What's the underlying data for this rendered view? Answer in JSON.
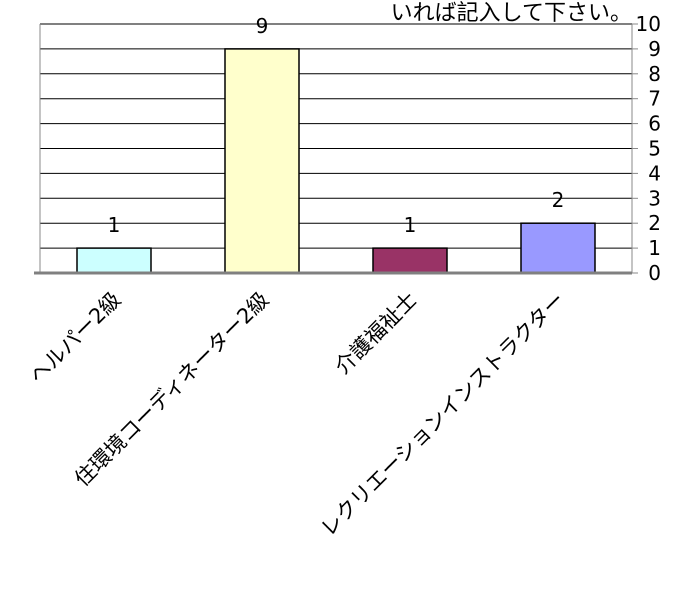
{
  "chart_data": {
    "type": "bar",
    "title": "いれば記入して下さい。",
    "categories": [
      "ヘルパー2級",
      "住環境コーディネーター2級",
      "介護福祉士",
      "レクリエーションインストラクター"
    ],
    "values": [
      1,
      9,
      1,
      2
    ],
    "data_labels": [
      "1",
      "9",
      "1",
      "2"
    ],
    "bar_colors": [
      "#ccffff",
      "#ffffcc",
      "#993366",
      "#9999ff"
    ],
    "ylim": [
      0,
      10
    ],
    "y_ticks": [
      0,
      1,
      2,
      3,
      4,
      5,
      6,
      7,
      8,
      9,
      10
    ],
    "y_axis_side": "right",
    "grid": true,
    "xlabel": "",
    "ylabel": ""
  }
}
